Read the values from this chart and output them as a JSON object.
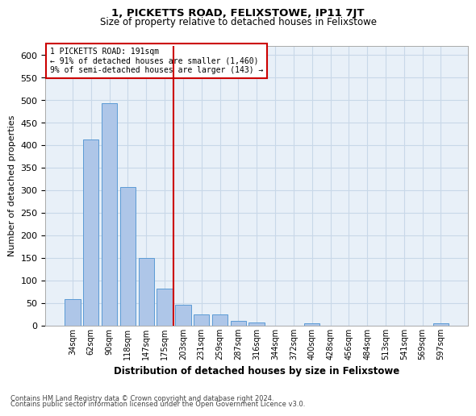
{
  "title": "1, PICKETTS ROAD, FELIXSTOWE, IP11 7JT",
  "subtitle": "Size of property relative to detached houses in Felixstowe",
  "xlabel": "Distribution of detached houses by size in Felixstowe",
  "ylabel": "Number of detached properties",
  "categories": [
    "34sqm",
    "62sqm",
    "90sqm",
    "118sqm",
    "147sqm",
    "175sqm",
    "203sqm",
    "231sqm",
    "259sqm",
    "287sqm",
    "316sqm",
    "344sqm",
    "372sqm",
    "400sqm",
    "428sqm",
    "456sqm",
    "484sqm",
    "513sqm",
    "541sqm",
    "569sqm",
    "597sqm"
  ],
  "values": [
    58,
    412,
    493,
    307,
    150,
    82,
    45,
    25,
    25,
    10,
    6,
    0,
    0,
    4,
    0,
    0,
    0,
    0,
    0,
    0,
    4
  ],
  "bar_color": "#aec6e8",
  "bar_edge_color": "#5b9bd5",
  "grid_color": "#c8d8e8",
  "bg_color": "#e8f0f8",
  "property_line_x": 5.5,
  "annotation_line1": "1 PICKETTS ROAD: 191sqm",
  "annotation_line2": "← 91% of detached houses are smaller (1,460)",
  "annotation_line3": "9% of semi-detached houses are larger (143) →",
  "annotation_box_color": "#ffffff",
  "annotation_box_edge": "#cc0000",
  "vline_color": "#cc0000",
  "footnote1": "Contains HM Land Registry data © Crown copyright and database right 2024.",
  "footnote2": "Contains public sector information licensed under the Open Government Licence v3.0.",
  "ylim": [
    0,
    620
  ],
  "yticks": [
    0,
    50,
    100,
    150,
    200,
    250,
    300,
    350,
    400,
    450,
    500,
    550,
    600
  ]
}
